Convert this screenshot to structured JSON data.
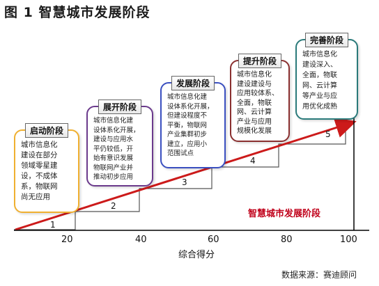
{
  "figure_title": "图 1  智慧城市发展阶段",
  "chart_title": "智慧城市发展阶段",
  "x_axis": {
    "label": "综合得分",
    "ticks": [
      "20",
      "40",
      "60",
      "80",
      "100"
    ]
  },
  "steps": [
    "1",
    "2",
    "3",
    "4",
    "5"
  ],
  "stages": [
    {
      "name": "启动阶段",
      "text": "城市信息化\n建设在部分\n领域零星建\n设，不成体\n系，物联网\n尚无应用",
      "color": "#f0b030"
    },
    {
      "name": "展开阶段",
      "text": "城市信息化建\n设体系化开展，\n建设与应用水\n平仍较低，开\n始有意识发展\n物联网产业并\n推动初步应用",
      "color": "#6b3a8c"
    },
    {
      "name": "发展阶段",
      "text": "城市信息化建\n设体系化开展，\n但建设程度不\n平衡，物联网\n产业集群初步\n建立，应用小\n范围试点",
      "color": "#3a4fc0"
    },
    {
      "name": "提升阶段",
      "text": "城市信息化\n建设建设与\n应用较体系、\n全面，物联\n网、云计算\n产业与应用\n规模化发展",
      "color": "#8a3030"
    },
    {
      "name": "完善阶段",
      "text": "城市信息化\n建设深入、\n全面，物联\n网、云计算\n等产业与应\n用优化成熟",
      "color": "#2a7a7a"
    }
  ],
  "source": "数据来源：赛迪顾问"
}
